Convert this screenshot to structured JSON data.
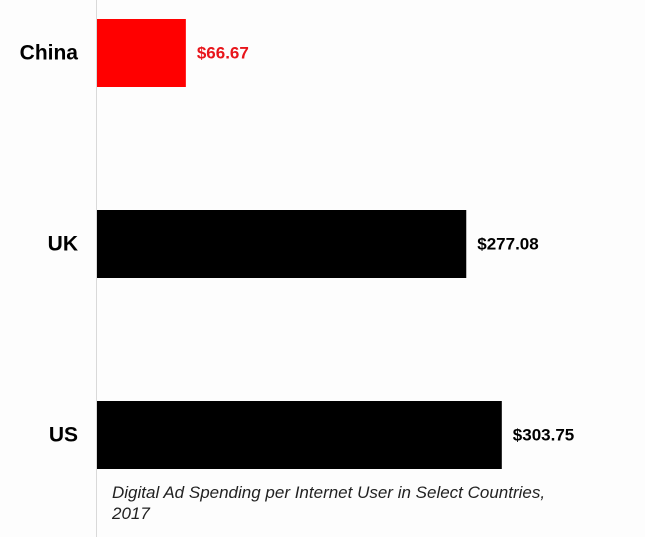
{
  "chart_data": {
    "type": "bar",
    "orientation": "horizontal",
    "categories": [
      "China",
      "UK",
      "US"
    ],
    "values": [
      66.67,
      277.08,
      303.75
    ],
    "value_labels": [
      "$66.67",
      "$277.08",
      "$303.75"
    ],
    "bar_colors": [
      "#ff0000",
      "#000000",
      "#000000"
    ],
    "label_colors": [
      "#e8151b",
      "#000000",
      "#000000"
    ],
    "title": "",
    "caption": "Digital Ad Spending per Internet User in Select Countries, 2017",
    "xlabel": "",
    "ylabel": "",
    "xlim": [
      0,
      310
    ],
    "grid": false,
    "legend": "none"
  }
}
